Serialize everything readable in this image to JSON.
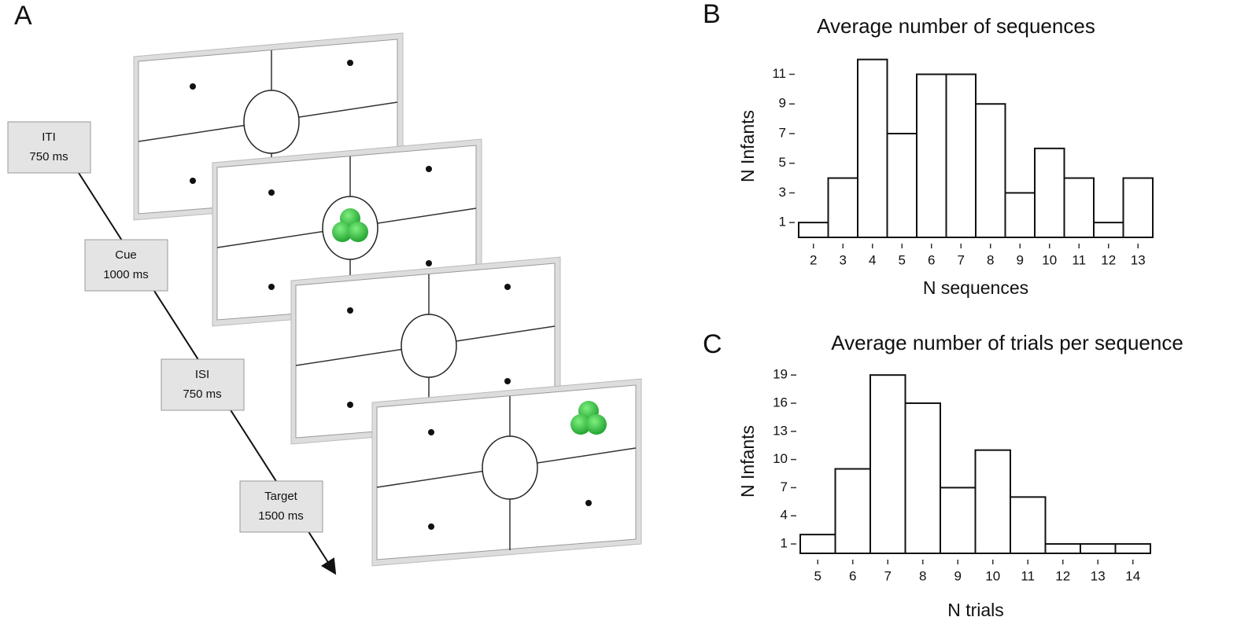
{
  "panel_a": {
    "label": "A",
    "steps": [
      {
        "name": "ITI",
        "duration": "750 ms"
      },
      {
        "name": "Cue",
        "duration": "1000 ms"
      },
      {
        "name": "ISI",
        "duration": "750 ms"
      },
      {
        "name": "Target",
        "duration": "1500 ms"
      }
    ]
  },
  "chart_data": [
    {
      "type": "bar",
      "panel": "B",
      "title": "Average number of sequences",
      "x_label": "N sequences",
      "y_label": "N Infants",
      "categories": [
        2,
        3,
        4,
        5,
        6,
        7,
        8,
        9,
        10,
        11,
        12,
        13
      ],
      "values": [
        1,
        4,
        12,
        7,
        11,
        11,
        9,
        3,
        6,
        4,
        1,
        4
      ],
      "color": "#ffffff",
      "ylim": [
        0,
        12.3
      ],
      "yticks": [
        1,
        3,
        5,
        7,
        9,
        11
      ]
    },
    {
      "type": "bar",
      "panel": "C",
      "title": "Average number of trials per sequence",
      "x_label": "N trials",
      "y_label": "N Infants",
      "categories": [
        5,
        6,
        7,
        8,
        9,
        10,
        11,
        12,
        13,
        14
      ],
      "values": [
        2,
        9,
        19,
        16,
        7,
        11,
        6,
        1,
        1,
        1
      ],
      "color": "#ffffff",
      "ylim": [
        0,
        19.6
      ],
      "yticks": [
        1,
        4,
        7,
        10,
        13,
        16,
        19
      ]
    }
  ]
}
